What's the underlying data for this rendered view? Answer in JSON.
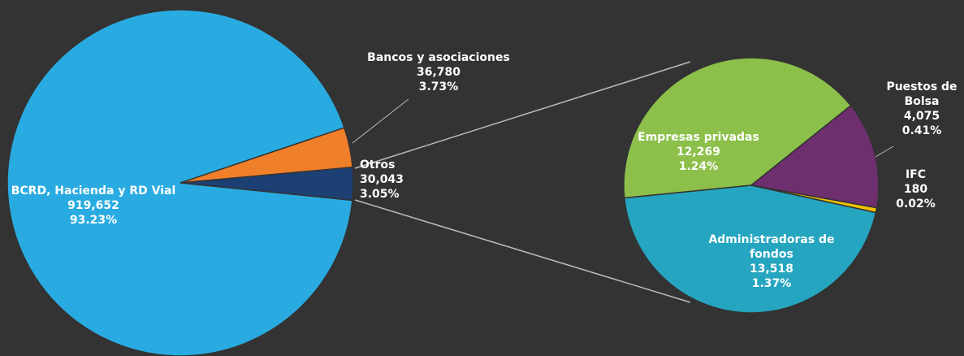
{
  "chart_data": [
    {
      "type": "pie",
      "categories": [
        "Bancos y asociaciones",
        "Otros",
        "BCRD, Hacienda y RD Vial"
      ],
      "values": [
        36780,
        30043,
        919652
      ],
      "value_labels": [
        "36,780",
        "30,043",
        "919,652"
      ],
      "percent_labels": [
        "3.73%",
        "3.05%",
        "93.23%"
      ],
      "colors": [
        "#f07f2a",
        "#1c3f74",
        "#29abe2"
      ]
    },
    {
      "type": "pie",
      "categories": [
        "Empresas privadas",
        "Puestos de Bolsa",
        "IFC",
        "Administradoras de fondos"
      ],
      "values": [
        12269,
        4075,
        180,
        13518
      ],
      "value_labels": [
        "12,269",
        "4,075",
        "180",
        "13,518"
      ],
      "percent_labels": [
        "1.24%",
        "0.41%",
        "0.02%",
        "1.37%"
      ],
      "colors": [
        "#8cc04a",
        "#6d2f6e",
        "#f3c300",
        "#25a5bf"
      ]
    }
  ]
}
